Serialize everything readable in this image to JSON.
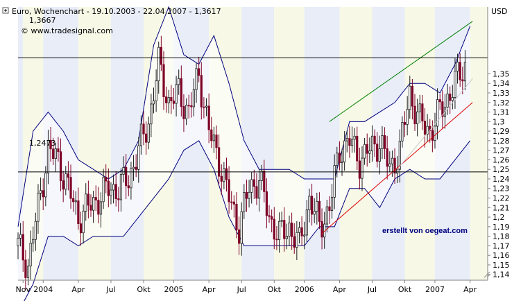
{
  "header": {
    "title": "Euro, Wochenchart - 19.10.2003 - 22.04.2007 - 1,3617",
    "last_value": "1,3667",
    "source": "© www.tradesignal.com",
    "currency": "USD"
  },
  "watermark": "erstellt von oegeat.com",
  "levels": {
    "resistance": {
      "value": 1.3667,
      "label": "1,3667"
    },
    "support": {
      "value": 1.2473,
      "label": "1,2473"
    }
  },
  "colors": {
    "band_line": "#00007f",
    "band_fill": "#ffffff",
    "stripe_a": "#e8edf8",
    "stripe_b": "#f7f9e6",
    "candle_up": "#1a1a1a",
    "candle_down": "#7f0026",
    "trend_green": "#008000",
    "trend_red": "#e00000",
    "trend_gray": "#c8c8c8"
  },
  "chart_data": {
    "type": "candlestick",
    "title": "Euro, Wochenchart - 19.10.2003 - 22.04.2007 - 1,3617",
    "ylabel": "USD",
    "ylim": [
      1.134,
      1.42
    ],
    "yticks": [
      1.14,
      1.15,
      1.16,
      1.17,
      1.18,
      1.19,
      1.2,
      1.21,
      1.22,
      1.23,
      1.24,
      1.25,
      1.26,
      1.27,
      1.28,
      1.29,
      1.3,
      1.31,
      1.32,
      1.33,
      1.34,
      1.35
    ],
    "ytick_labels": [
      "1,14",
      "1,15",
      "1,16",
      "1,17",
      "1,18",
      "1,19",
      "1,2",
      "1,21",
      "1,22",
      "1,23",
      "1,24",
      "1,25",
      "1,26",
      "1,27",
      "1,28",
      "1,29",
      "1,3",
      "1,31",
      "1,32",
      "1,33",
      "1,34",
      "1,35"
    ],
    "x_ticks": [
      {
        "label": "Nov",
        "week": 2
      },
      {
        "label": "2004",
        "week": 10
      },
      {
        "label": "Apr",
        "week": 24
      },
      {
        "label": "Jul",
        "week": 37
      },
      {
        "label": "Okt",
        "week": 50
      },
      {
        "label": "2005",
        "week": 62
      },
      {
        "label": "Apr",
        "week": 76
      },
      {
        "label": "Jul",
        "week": 89
      },
      {
        "label": "Okt",
        "week": 102
      },
      {
        "label": "2006",
        "week": 114
      },
      {
        "label": "Apr",
        "week": 128
      },
      {
        "label": "Jul",
        "week": 141
      },
      {
        "label": "Okt",
        "week": 154
      },
      {
        "label": "2007",
        "week": 166
      },
      {
        "label": "Apr",
        "week": 180
      }
    ],
    "x_range_weeks": [
      0,
      187
    ],
    "price_series": {
      "name": "EUR/USD weekly close (approx.)",
      "weeks": [
        0,
        4,
        8,
        12,
        16,
        20,
        24,
        28,
        32,
        36,
        40,
        44,
        48,
        52,
        56,
        60,
        64,
        68,
        72,
        76,
        80,
        84,
        88,
        92,
        96,
        100,
        104,
        108,
        112,
        116,
        120,
        124,
        128,
        132,
        136,
        140,
        144,
        148,
        152,
        156,
        160,
        164,
        168,
        172,
        176,
        178
      ],
      "close": [
        1.17,
        1.15,
        1.21,
        1.27,
        1.26,
        1.23,
        1.2,
        1.21,
        1.22,
        1.23,
        1.23,
        1.24,
        1.27,
        1.3,
        1.36,
        1.32,
        1.33,
        1.31,
        1.35,
        1.29,
        1.26,
        1.22,
        1.19,
        1.23,
        1.24,
        1.2,
        1.18,
        1.19,
        1.17,
        1.22,
        1.19,
        1.21,
        1.27,
        1.28,
        1.26,
        1.27,
        1.28,
        1.25,
        1.27,
        1.33,
        1.3,
        1.29,
        1.31,
        1.33,
        1.35,
        1.36
      ]
    },
    "bollinger": {
      "upper_weeks": [
        0,
        6,
        12,
        18,
        24,
        30,
        36,
        42,
        48,
        54,
        60,
        66,
        72,
        78,
        84,
        90,
        96,
        102,
        108,
        114,
        120,
        126,
        132,
        138,
        144,
        150,
        156,
        162,
        168,
        174,
        180
      ],
      "upper": [
        1.19,
        1.29,
        1.31,
        1.29,
        1.26,
        1.25,
        1.24,
        1.25,
        1.28,
        1.38,
        1.42,
        1.37,
        1.36,
        1.39,
        1.34,
        1.28,
        1.25,
        1.25,
        1.25,
        1.24,
        1.24,
        1.24,
        1.3,
        1.3,
        1.31,
        1.32,
        1.34,
        1.34,
        1.33,
        1.36,
        1.4
      ],
      "lower_weeks": [
        0,
        6,
        12,
        18,
        24,
        30,
        36,
        42,
        48,
        54,
        60,
        66,
        72,
        78,
        84,
        90,
        96,
        102,
        108,
        114,
        120,
        126,
        132,
        138,
        144,
        150,
        156,
        162,
        168,
        174,
        180
      ],
      "lower": [
        1.1,
        1.13,
        1.18,
        1.18,
        1.17,
        1.18,
        1.18,
        1.18,
        1.2,
        1.22,
        1.24,
        1.27,
        1.28,
        1.25,
        1.2,
        1.17,
        1.17,
        1.17,
        1.17,
        1.17,
        1.19,
        1.19,
        1.23,
        1.23,
        1.21,
        1.24,
        1.25,
        1.24,
        1.24,
        1.26,
        1.28
      ]
    },
    "trendlines": [
      {
        "name": "green",
        "from": {
          "week": 124,
          "price": 1.3
        },
        "to": {
          "week": 181,
          "price": 1.405
        }
      },
      {
        "name": "red",
        "from": {
          "week": 121,
          "price": 1.183
        },
        "to": {
          "week": 181,
          "price": 1.32
        }
      },
      {
        "name": "gray",
        "from": {
          "week": 151,
          "price": 1.25
        },
        "to": {
          "week": 181,
          "price": 1.345
        }
      }
    ],
    "grid": false
  }
}
